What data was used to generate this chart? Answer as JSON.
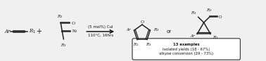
{
  "bg_color": "#f0f0f0",
  "box_color": "#ffffff",
  "box_edge_color": "#444444",
  "text_color": "#111111",
  "arrow_color": "#111111",
  "bond_color": "#222222",
  "figsize": [
    3.78,
    0.87
  ],
  "dpi": 100,
  "reaction_arrow_label1": "(5 mol%) CuI",
  "reaction_arrow_label2": "110°C, 16hrs",
  "box_lines": [
    "13 examples",
    "isolated yields (18 - 67%)",
    "alkyne conversion (29 - 73%)"
  ],
  "or_text": "or"
}
